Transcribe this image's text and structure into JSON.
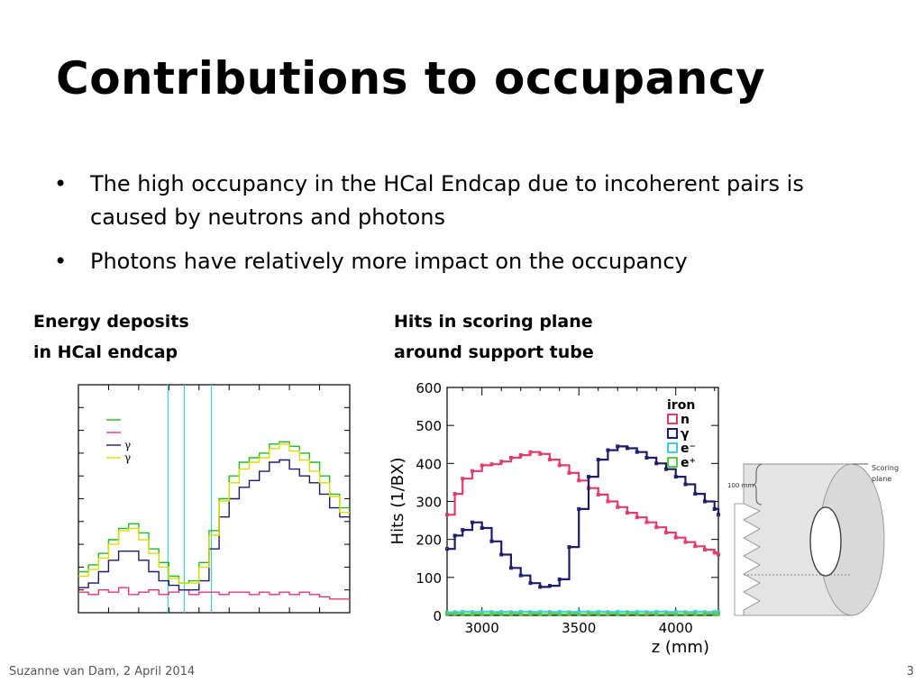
{
  "slide": {
    "title": "Contributions to occupancy",
    "bullets": [
      "The high occupancy in the HCal Endcap due to incoherent pairs is caused by neutrons and photons",
      "Photons have relatively more impact on the occupancy"
    ],
    "footer_left": "Suzanne van Dam, 2 April 2014",
    "page_number": "3"
  },
  "figures": {
    "left_caption_line1": "Energy deposits",
    "left_caption_line2": "in HCal endcap",
    "right_caption_line1": "Hits in scoring plane",
    "right_caption_line2": "around support tube",
    "diagram_100mm": "100 mm",
    "diagram_scoring": "Scoring",
    "diagram_plane": "plane"
  },
  "chart_data": [
    {
      "type": "line",
      "legend": [
        {
          "name": "",
          "color": "#22bb22"
        },
        {
          "name": "",
          "color": "#ee3377"
        },
        {
          "name": "γ",
          "color": "#1a1a6e"
        },
        {
          "name": "γ",
          "color": "#dddd00"
        }
      ],
      "series": [
        {
          "name": "green",
          "color": "#22bb22",
          "values": [
            0.18,
            0.21,
            0.26,
            0.32,
            0.37,
            0.39,
            0.35,
            0.28,
            0.22,
            0.16,
            0.13,
            0.14,
            0.22,
            0.36,
            0.5,
            0.6,
            0.66,
            0.68,
            0.7,
            0.74,
            0.75,
            0.73,
            0.7,
            0.66,
            0.6,
            0.52,
            0.46
          ]
        },
        {
          "name": "pink",
          "color": "#ee3377",
          "values": [
            0.09,
            0.08,
            0.1,
            0.09,
            0.11,
            0.08,
            0.09,
            0.1,
            0.08,
            0.09,
            0.1,
            0.08,
            0.09,
            0.09,
            0.08,
            0.09,
            0.09,
            0.08,
            0.09,
            0.08,
            0.09,
            0.08,
            0.09,
            0.08,
            0.07,
            0.06,
            0.06
          ]
        },
        {
          "name": "γ",
          "color": "#1a1a6e",
          "values": [
            0.11,
            0.13,
            0.18,
            0.23,
            0.27,
            0.27,
            0.23,
            0.18,
            0.14,
            0.12,
            0.1,
            0.1,
            0.14,
            0.28,
            0.42,
            0.5,
            0.55,
            0.58,
            0.62,
            0.66,
            0.67,
            0.63,
            0.6,
            0.57,
            0.52,
            0.46,
            0.42
          ]
        },
        {
          "name": "γ",
          "color": "#dddd00",
          "values": [
            0.16,
            0.19,
            0.24,
            0.3,
            0.36,
            0.37,
            0.32,
            0.26,
            0.2,
            0.15,
            0.13,
            0.13,
            0.2,
            0.34,
            0.49,
            0.57,
            0.63,
            0.66,
            0.68,
            0.72,
            0.74,
            0.71,
            0.67,
            0.62,
            0.57,
            0.51,
            0.44
          ]
        }
      ],
      "vlines": {
        "color": "#44cccc",
        "positions": [
          0.33,
          0.39,
          0.49
        ]
      },
      "grid": false
    },
    {
      "type": "line",
      "xlabel": "z (mm)",
      "ylabel": "Hits (1/BX)",
      "xlim": [
        2820,
        4220
      ],
      "ylim": [
        0,
        600
      ],
      "xticks": [
        3000,
        3500,
        4000
      ],
      "yticks": [
        0,
        100,
        200,
        300,
        400,
        500,
        600
      ],
      "legend_title": "iron",
      "legend": [
        {
          "name": "n",
          "color": "#e33b6a"
        },
        {
          "name": "γ",
          "color": "#1c1c6e"
        },
        {
          "name": "e⁻",
          "color": "#3fd1d6"
        },
        {
          "name": "e⁺",
          "color": "#55cc44"
        }
      ],
      "x": [
        2820,
        2860,
        2900,
        2950,
        3000,
        3050,
        3100,
        3150,
        3200,
        3250,
        3300,
        3350,
        3400,
        3450,
        3500,
        3550,
        3600,
        3650,
        3700,
        3750,
        3800,
        3850,
        3900,
        3950,
        4000,
        4050,
        4100,
        4150,
        4200,
        4220
      ],
      "series": [
        {
          "name": "n",
          "color": "#e33b6a",
          "values": [
            265,
            320,
            360,
            380,
            395,
            398,
            405,
            415,
            422,
            430,
            425,
            410,
            395,
            375,
            355,
            335,
            318,
            300,
            285,
            270,
            258,
            245,
            232,
            218,
            205,
            193,
            182,
            173,
            165,
            160
          ]
        },
        {
          "name": "γ",
          "color": "#1c1c6e",
          "values": [
            175,
            210,
            225,
            245,
            230,
            195,
            160,
            125,
            105,
            85,
            75,
            78,
            95,
            180,
            280,
            365,
            410,
            435,
            445,
            440,
            430,
            415,
            400,
            385,
            365,
            345,
            320,
            300,
            280,
            265
          ]
        },
        {
          "name": "e⁻",
          "color": "#3fd1d6",
          "values": [
            8,
            9,
            10,
            9,
            10,
            9,
            10,
            9,
            10,
            9,
            10,
            9,
            10,
            9,
            10,
            9,
            10,
            9,
            10,
            9,
            10,
            9,
            10,
            9,
            10,
            9,
            10,
            9,
            10,
            9
          ]
        },
        {
          "name": "e⁺",
          "color": "#55cc44",
          "values": [
            3,
            4,
            3,
            4,
            3,
            4,
            3,
            4,
            3,
            4,
            3,
            4,
            3,
            4,
            3,
            4,
            3,
            4,
            3,
            4,
            3,
            4,
            3,
            4,
            3,
            4,
            3,
            4,
            3,
            4
          ]
        }
      ],
      "grid": false
    }
  ]
}
